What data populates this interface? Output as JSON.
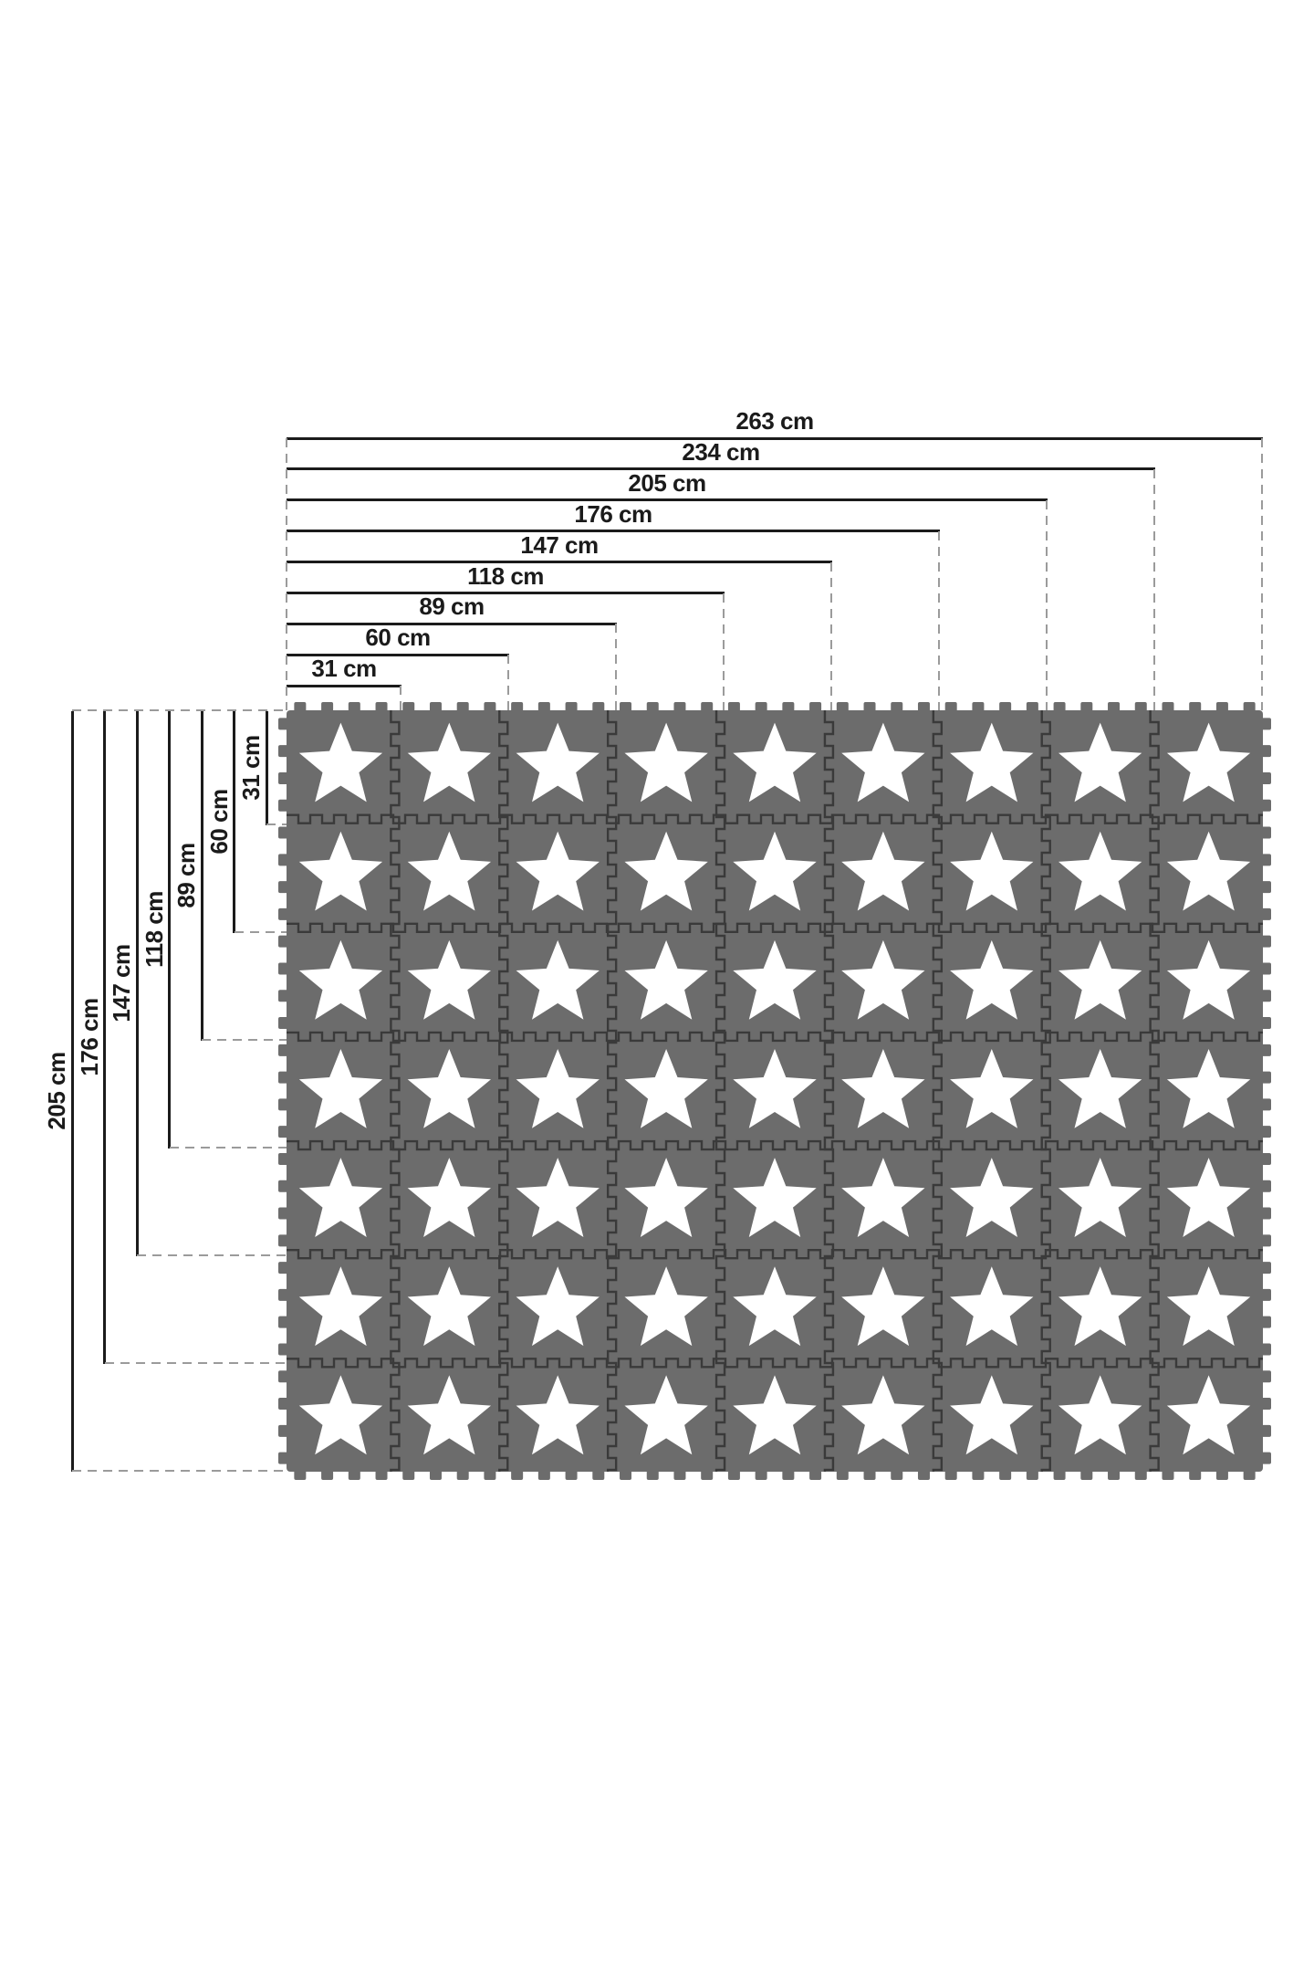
{
  "diagram": {
    "unit": "cm",
    "horizontal_dimensions": [
      {
        "label": "263 cm",
        "cm": 263
      },
      {
        "label": "234 cm",
        "cm": 234
      },
      {
        "label": "205 cm",
        "cm": 205
      },
      {
        "label": "176 cm",
        "cm": 176
      },
      {
        "label": "147 cm",
        "cm": 147
      },
      {
        "label": "118 cm",
        "cm": 118
      },
      {
        "label": "89 cm",
        "cm": 89
      },
      {
        "label": "60 cm",
        "cm": 60
      },
      {
        "label": "31 cm",
        "cm": 31
      }
    ],
    "vertical_dimensions": [
      {
        "label": "205 cm",
        "cm": 205
      },
      {
        "label": "176 cm",
        "cm": 176
      },
      {
        "label": "147 cm",
        "cm": 147
      },
      {
        "label": "118 cm",
        "cm": 118
      },
      {
        "label": "89 cm",
        "cm": 89
      },
      {
        "label": "60 cm",
        "cm": 60
      },
      {
        "label": "31 cm",
        "cm": 31
      }
    ],
    "mat": {
      "columns": 9,
      "rows": 7,
      "total_width_cm": 263,
      "total_height_cm": 205,
      "tile_motif": "white five-point star"
    },
    "colors": {
      "background": "#ffffff",
      "dimension_line": "#1b1b1b",
      "dashed_guide": "#9b9b9b",
      "text": "#1b1b1b",
      "tile": "#6c6c6c",
      "tile_seam": "#3a3a3a",
      "star": "#ffffff"
    }
  }
}
